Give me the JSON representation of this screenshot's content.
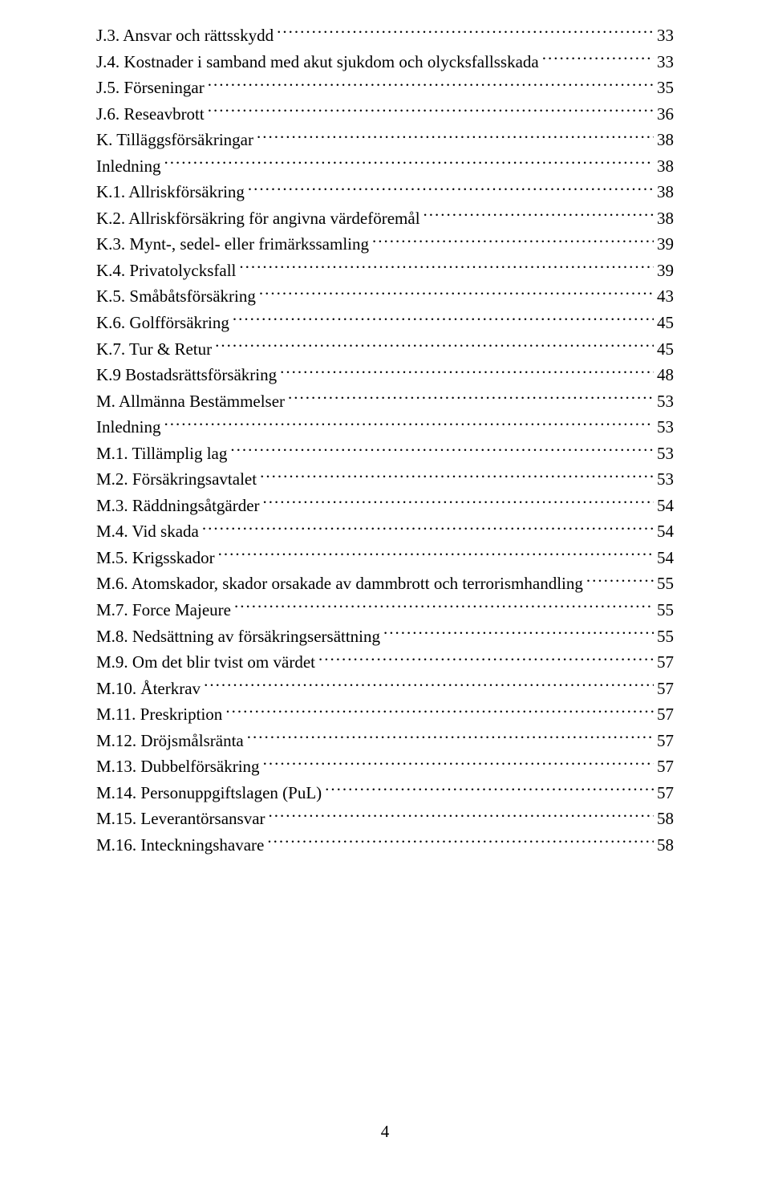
{
  "page_number": "4",
  "font": {
    "family": "Times New Roman",
    "size_pt": 16,
    "color": "#000000"
  },
  "background_color": "#ffffff",
  "toc": [
    {
      "title": "J.3. Ansvar och rättsskydd",
      "page": "33"
    },
    {
      "title": "J.4. Kostnader i samband med akut sjukdom och olycksfallsskada",
      "page": "33"
    },
    {
      "title": "J.5. Förseningar",
      "page": "35"
    },
    {
      "title": "J.6. Reseavbrott",
      "page": "36"
    },
    {
      "title": "K. Tilläggsförsäkringar",
      "page": "38"
    },
    {
      "title": "Inledning",
      "page": "38"
    },
    {
      "title": "K.1. Allriskförsäkring",
      "page": "38"
    },
    {
      "title": "K.2. Allriskförsäkring för angivna värdeföremål",
      "page": "38"
    },
    {
      "title": "K.3. Mynt-, sedel- eller frimärkssamling",
      "page": "39"
    },
    {
      "title": "K.4. Privatolycksfall",
      "page": "39"
    },
    {
      "title": "K.5. Småbåtsförsäkring",
      "page": "43"
    },
    {
      "title": "K.6. Golfförsäkring",
      "page": "45"
    },
    {
      "title": "K.7. Tur & Retur",
      "page": "45"
    },
    {
      "title": "K.9  Bostadsrättsförsäkring",
      "page": "48"
    },
    {
      "title": "M. Allmänna Bestämmelser",
      "page": "53"
    },
    {
      "title": "Inledning",
      "page": "53"
    },
    {
      "title": "M.1. Tillämplig lag",
      "page": "53"
    },
    {
      "title": "M.2. Försäkringsavtalet",
      "page": "53"
    },
    {
      "title": "M.3. Räddningsåtgärder",
      "page": "54"
    },
    {
      "title": "M.4. Vid skada",
      "page": "54"
    },
    {
      "title": "M.5. Krigsskador",
      "page": "54"
    },
    {
      "title": "M.6. Atomskador, skador orsakade av dammbrott och terrorismhandling",
      "page": "55"
    },
    {
      "title": "M.7. Force Majeure",
      "page": "55"
    },
    {
      "title": "M.8. Nedsättning av försäkringsersättning",
      "page": "55"
    },
    {
      "title": "M.9. Om det blir tvist om värdet",
      "page": "57"
    },
    {
      "title": "M.10. Återkrav",
      "page": "57"
    },
    {
      "title": "M.11. Preskription",
      "page": "57"
    },
    {
      "title": "M.12. Dröjsmålsränta",
      "page": "57"
    },
    {
      "title": "M.13. Dubbelförsäkring",
      "page": "57"
    },
    {
      "title": "M.14. Personuppgiftslagen (PuL)",
      "page": "57"
    },
    {
      "title": "M.15. Leverantörsansvar",
      "page": "58"
    },
    {
      "title": "M.16. Inteckningshavare",
      "page": "58"
    }
  ]
}
